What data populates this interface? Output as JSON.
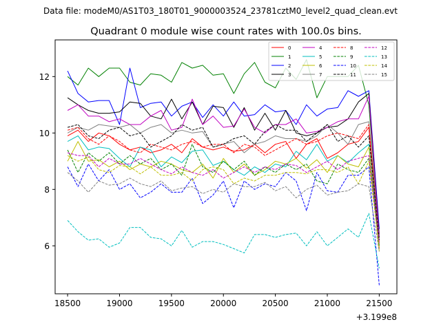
{
  "figure": {
    "header": "Data file: modeM0/AS1T03_180T01_9000003524_23781cztM0_level2_quad_clean.evt"
  },
  "chart_data": {
    "type": "line",
    "title": "Quadrant 0 module wise count rates with 100.0s bins.",
    "xlabel": "",
    "ylabel": "",
    "x_offset_label": "+3.199e8",
    "xlim": [
      18380,
      21670
    ],
    "ylim": [
      4.3,
      13.3
    ],
    "xticks": [
      18500,
      19000,
      19500,
      20000,
      20500,
      21000,
      21500
    ],
    "yticks": [
      6,
      8,
      10,
      12
    ],
    "legend_position": "top-right",
    "x": [
      18500,
      18600,
      18700,
      18800,
      18900,
      19000,
      19100,
      19200,
      19300,
      19400,
      19500,
      19600,
      19700,
      19800,
      19900,
      20000,
      20100,
      20200,
      20300,
      20400,
      20500,
      20600,
      20700,
      20800,
      20900,
      21000,
      21100,
      21200,
      21300,
      21400,
      21500
    ],
    "series": [
      {
        "name": "0",
        "color": "#ff0000",
        "dash": false,
        "values": [
          9.9,
          10.1,
          9.7,
          10.0,
          9.9,
          9.6,
          9.4,
          9.5,
          9.3,
          9.4,
          9.6,
          9.3,
          9.8,
          9.5,
          9.4,
          9.5,
          9.35,
          9.4,
          9.6,
          9.3,
          9.6,
          9.7,
          9.1,
          9.6,
          9.8,
          9.1,
          9.3,
          9.6,
          9.7,
          10.2,
          5.9
        ]
      },
      {
        "name": "1",
        "color": "#008000",
        "dash": false,
        "values": [
          12.0,
          11.7,
          12.3,
          12.0,
          12.3,
          12.3,
          11.8,
          11.7,
          12.1,
          12.05,
          11.8,
          12.5,
          12.3,
          12.4,
          12.05,
          12.1,
          11.4,
          12.1,
          12.5,
          11.8,
          11.6,
          12.3,
          11.9,
          12.6,
          11.25,
          12.0,
          12.0,
          12.0,
          12.4,
          11.0,
          6.3
        ]
      },
      {
        "name": "2",
        "color": "#0000ff",
        "dash": false,
        "values": [
          12.2,
          11.4,
          11.1,
          11.15,
          11.15,
          10.3,
          12.3,
          10.9,
          11.05,
          11.1,
          10.6,
          10.95,
          11.1,
          10.55,
          11.0,
          10.6,
          11.1,
          10.6,
          10.65,
          11.0,
          10.75,
          10.8,
          10.3,
          11.0,
          10.6,
          10.85,
          10.9,
          11.5,
          11.3,
          11.5,
          6.6
        ]
      },
      {
        "name": "3",
        "color": "#000000",
        "dash": false,
        "values": [
          11.25,
          11.0,
          10.8,
          10.7,
          10.7,
          10.75,
          11.1,
          11.05,
          10.6,
          10.5,
          11.2,
          10.5,
          11.1,
          10.3,
          10.95,
          10.9,
          10.2,
          10.9,
          10.1,
          10.7,
          10.1,
          10.8,
          10.0,
          9.9,
          10.0,
          10.2,
          10.25,
          10.5,
          11.1,
          11.4,
          6.4
        ]
      },
      {
        "name": "4",
        "color": "#c000c0",
        "dash": false,
        "values": [
          10.8,
          11.0,
          10.6,
          10.6,
          10.4,
          10.5,
          10.3,
          10.3,
          10.6,
          10.8,
          10.1,
          10.2,
          11.2,
          10.3,
          10.6,
          10.2,
          10.25,
          10.85,
          10.2,
          10.0,
          10.3,
          10.3,
          10.5,
          10.0,
          10.05,
          10.2,
          10.4,
          10.5,
          10.5,
          11.3,
          6.3
        ]
      },
      {
        "name": "5",
        "color": "#00bfbf",
        "dash": false,
        "values": [
          9.7,
          9.9,
          9.4,
          9.5,
          9.45,
          9.1,
          8.8,
          9.5,
          9.4,
          8.8,
          9.15,
          8.95,
          9.35,
          9.4,
          8.85,
          9.0,
          8.7,
          8.5,
          8.8,
          8.6,
          8.9,
          8.8,
          9.35,
          9.05,
          9.6,
          9.0,
          9.2,
          8.95,
          9.3,
          9.6,
          6.0
        ]
      },
      {
        "name": "6",
        "color": "#bfbf00",
        "dash": false,
        "values": [
          9.0,
          9.7,
          9.0,
          9.05,
          8.8,
          9.0,
          8.7,
          8.9,
          8.8,
          9.0,
          8.9,
          8.7,
          8.6,
          8.9,
          8.4,
          9.1,
          8.6,
          8.9,
          8.5,
          8.7,
          9.0,
          8.9,
          9.1,
          8.75,
          9.05,
          8.6,
          9.2,
          8.9,
          8.8,
          9.5,
          5.8
        ]
      },
      {
        "name": "7",
        "color": "#808080",
        "dash": false,
        "values": [
          10.0,
          10.2,
          10.1,
          10.3,
          10.25,
          10.2,
          10.3,
          10.0,
          10.2,
          10.3,
          10.0,
          10.1,
          10.0,
          10.05,
          9.5,
          9.6,
          9.7,
          9.3,
          9.6,
          9.7,
          9.9,
          9.8,
          9.8,
          9.7,
          9.9,
          10.3,
          10.0,
          9.6,
          10.3,
          10.4,
          6.2
        ]
      },
      {
        "name": "8",
        "color": "#ff0000",
        "dash": true,
        "values": [
          10.1,
          10.2,
          9.8,
          9.6,
          9.9,
          9.7,
          9.4,
          9.3,
          9.6,
          9.5,
          9.4,
          9.6,
          9.7,
          9.5,
          9.6,
          9.6,
          9.3,
          9.6,
          9.5,
          9.2,
          9.4,
          9.6,
          9.8,
          9.6,
          9.7,
          9.9,
          10.0,
          9.9,
          9.8,
          10.3,
          6.1
        ]
      },
      {
        "name": "9",
        "color": "#008000",
        "dash": true,
        "values": [
          9.4,
          8.6,
          9.3,
          9.0,
          9.3,
          8.9,
          9.2,
          8.9,
          9.1,
          8.7,
          8.9,
          8.5,
          9.6,
          8.8,
          8.6,
          9.0,
          8.7,
          9.0,
          8.5,
          8.8,
          8.6,
          8.9,
          8.7,
          8.9,
          8.3,
          8.2,
          8.9,
          8.7,
          8.6,
          9.1,
          6.0
        ]
      },
      {
        "name": "10",
        "color": "#0000ff",
        "dash": true,
        "values": [
          8.8,
          8.1,
          8.9,
          8.3,
          8.7,
          8.0,
          8.2,
          7.7,
          7.9,
          8.2,
          7.9,
          7.9,
          8.4,
          7.5,
          7.8,
          8.3,
          7.35,
          8.3,
          8.0,
          8.2,
          8.1,
          8.6,
          8.3,
          7.25,
          8.6,
          7.95,
          7.9,
          8.5,
          8.5,
          8.8,
          4.6
        ]
      },
      {
        "name": "11",
        "color": "#000000",
        "dash": true,
        "values": [
          10.2,
          10.3,
          9.9,
          9.8,
          10.1,
          10.2,
          9.9,
          10.0,
          9.5,
          9.7,
          9.9,
          10.3,
          10.1,
          10.2,
          9.5,
          9.6,
          9.8,
          9.9,
          9.6,
          10.05,
          10.3,
          10.1,
          10.1,
          9.7,
          10.0,
          10.3,
          9.7,
          9.9,
          9.5,
          9.9,
          6.2
        ]
      },
      {
        "name": "12",
        "color": "#c000c0",
        "dash": true,
        "values": [
          9.3,
          9.2,
          9.2,
          8.8,
          9.1,
          8.9,
          8.9,
          9.1,
          8.9,
          8.7,
          8.55,
          8.8,
          8.6,
          8.5,
          8.7,
          8.4,
          8.6,
          8.8,
          8.6,
          8.8,
          8.7,
          8.9,
          8.85,
          8.6,
          8.8,
          9.0,
          8.7,
          9.0,
          9.1,
          9.2,
          6.1
        ]
      },
      {
        "name": "13",
        "color": "#00bfbf",
        "dash": true,
        "values": [
          6.9,
          6.5,
          6.2,
          6.25,
          5.95,
          6.1,
          6.65,
          6.65,
          6.3,
          6.25,
          6.0,
          6.55,
          5.95,
          6.15,
          6.15,
          6.05,
          5.9,
          5.75,
          6.4,
          6.4,
          6.3,
          6.4,
          6.45,
          6.0,
          6.5,
          6.0,
          6.3,
          6.6,
          6.3,
          7.15,
          5.2
        ]
      },
      {
        "name": "14",
        "color": "#bfbf00",
        "dash": true,
        "values": [
          9.2,
          9.0,
          9.15,
          8.7,
          8.6,
          8.85,
          8.8,
          8.55,
          8.8,
          8.5,
          8.5,
          8.6,
          8.3,
          8.7,
          8.8,
          8.7,
          8.2,
          8.4,
          8.3,
          8.5,
          8.5,
          8.6,
          8.6,
          8.55,
          8.7,
          8.7,
          8.6,
          8.8,
          8.2,
          9.0,
          5.9
        ]
      },
      {
        "name": "15",
        "color": "#808080",
        "dash": true,
        "values": [
          8.6,
          8.3,
          7.9,
          8.3,
          8.15,
          8.2,
          8.4,
          8.2,
          8.1,
          8.3,
          7.95,
          8.05,
          8.1,
          7.85,
          8.0,
          7.9,
          8.2,
          8.1,
          8.1,
          8.25,
          7.95,
          8.1,
          7.7,
          8.0,
          8.15,
          7.8,
          7.9,
          7.95,
          8.2,
          8.1,
          5.8
        ]
      }
    ]
  }
}
